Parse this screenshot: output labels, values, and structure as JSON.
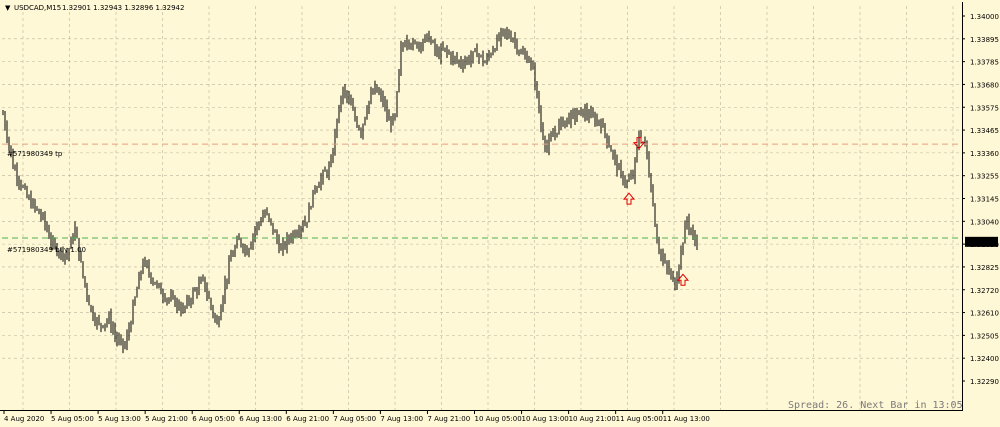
{
  "header": {
    "menu_glyph": "▼",
    "symbol": "USDCAD,M15",
    "ohlc": "1.32901 1.32943 1.32896 1.32942"
  },
  "status": {
    "spread_text": "Spread: 26. Next Bar in 13:05"
  },
  "orders": {
    "tp_label": "#571980349 tp",
    "buy_label": "#571980349 buy 1.00"
  },
  "colors": {
    "background": "#fff8d6",
    "grid": "#b8b39a",
    "candle": "#000000",
    "tp_line": "#e8a080",
    "buy_line": "#4caf50",
    "arrow": "#e00000",
    "price_tag_bg": "#000000",
    "price_tag_fg": "#ffffff"
  },
  "chart_data": {
    "type": "candlestick",
    "symbol": "USDCAD",
    "timeframe": "M15",
    "ylim": [
      1.3229,
      1.34
    ],
    "y_ticks": [
      "1.34000",
      "1.33895",
      "1.33785",
      "1.33680",
      "1.33575",
      "1.33465",
      "1.33360",
      "1.33255",
      "1.33145",
      "1.33040",
      "1.32930",
      "1.32825",
      "1.32720",
      "1.32610",
      "1.32505",
      "1.32400",
      "1.32290"
    ],
    "x_ticks": [
      "4 Aug 2020",
      "5 Aug 05:00",
      "5 Aug 13:00",
      "5 Aug 21:00",
      "6 Aug 05:00",
      "6 Aug 13:00",
      "6 Aug 21:00",
      "7 Aug 05:00",
      "7 Aug 13:00",
      "7 Aug 21:00",
      "10 Aug 05:00",
      "10 Aug 13:00",
      "10 Aug 21:00",
      "11 Aug 05:00",
      "11 Aug 13:00"
    ],
    "current_price": "1.32942",
    "tp_price": 1.334,
    "buy_price": 1.3296,
    "arrows": [
      {
        "dir": "down",
        "bar": 318,
        "price": 1.3343
      },
      {
        "dir": "up",
        "bar": 313,
        "price": 1.3317
      },
      {
        "dir": "up",
        "bar": 340,
        "price": 1.3279
      }
    ],
    "price_path": [
      [
        0,
        1.3354
      ],
      [
        5,
        1.333
      ],
      [
        12,
        1.3315
      ],
      [
        20,
        1.3305
      ],
      [
        25,
        1.3292
      ],
      [
        32,
        1.3288
      ],
      [
        36,
        1.33
      ],
      [
        40,
        1.3278
      ],
      [
        44,
        1.3262
      ],
      [
        48,
        1.3255
      ],
      [
        53,
        1.3258
      ],
      [
        57,
        1.3248
      ],
      [
        61,
        1.3245
      ],
      [
        64,
        1.3258
      ],
      [
        67,
        1.3272
      ],
      [
        70,
        1.3285
      ],
      [
        74,
        1.3278
      ],
      [
        78,
        1.3272
      ],
      [
        82,
        1.3268
      ],
      [
        86,
        1.3266
      ],
      [
        90,
        1.3262
      ],
      [
        95,
        1.327
      ],
      [
        100,
        1.3276
      ],
      [
        104,
        1.3264
      ],
      [
        107,
        1.3255
      ],
      [
        110,
        1.327
      ],
      [
        114,
        1.3287
      ],
      [
        118,
        1.3295
      ],
      [
        122,
        1.329
      ],
      [
        126,
        1.33
      ],
      [
        131,
        1.3308
      ],
      [
        135,
        1.33
      ],
      [
        139,
        1.329
      ],
      [
        143,
        1.3296
      ],
      [
        147,
        1.33
      ],
      [
        152,
        1.3305
      ],
      [
        156,
        1.332
      ],
      [
        160,
        1.3325
      ],
      [
        164,
        1.333
      ],
      [
        167,
        1.3352
      ],
      [
        170,
        1.3365
      ],
      [
        173,
        1.336
      ],
      [
        176,
        1.3352
      ],
      [
        179,
        1.3346
      ],
      [
        182,
        1.3358
      ],
      [
        186,
        1.3366
      ],
      [
        190,
        1.336
      ],
      [
        193,
        1.335
      ],
      [
        196,
        1.3352
      ],
      [
        199,
        1.3384
      ],
      [
        202,
        1.339
      ],
      [
        205,
        1.3386
      ],
      [
        209,
        1.3388
      ],
      [
        213,
        1.339
      ],
      [
        217,
        1.3382
      ],
      [
        221,
        1.3384
      ],
      [
        225,
        1.338
      ],
      [
        229,
        1.3378
      ],
      [
        233,
        1.338
      ],
      [
        237,
        1.3383
      ],
      [
        241,
        1.3378
      ],
      [
        245,
        1.3385
      ],
      [
        250,
        1.3392
      ],
      [
        255,
        1.339
      ],
      [
        259,
        1.3382
      ],
      [
        263,
        1.338
      ],
      [
        266,
        1.337
      ],
      [
        269,
        1.3348
      ],
      [
        272,
        1.3338
      ],
      [
        275,
        1.3344
      ],
      [
        279,
        1.335
      ],
      [
        283,
        1.3352
      ],
      [
        287,
        1.3354
      ],
      [
        291,
        1.3355
      ],
      [
        295,
        1.3352
      ],
      [
        299,
        1.335
      ],
      [
        303,
        1.334
      ],
      [
        306,
        1.3332
      ],
      [
        309,
        1.3325
      ],
      [
        312,
        1.3322
      ],
      [
        315,
        1.3325
      ],
      [
        318,
        1.3344
      ],
      [
        321,
        1.334
      ],
      [
        324,
        1.332
      ],
      [
        327,
        1.3295
      ],
      [
        330,
        1.3285
      ],
      [
        333,
        1.328
      ],
      [
        336,
        1.3274
      ],
      [
        339,
        1.329
      ],
      [
        342,
        1.3305
      ],
      [
        345,
        1.3296
      ],
      [
        347,
        1.3294
      ]
    ]
  }
}
